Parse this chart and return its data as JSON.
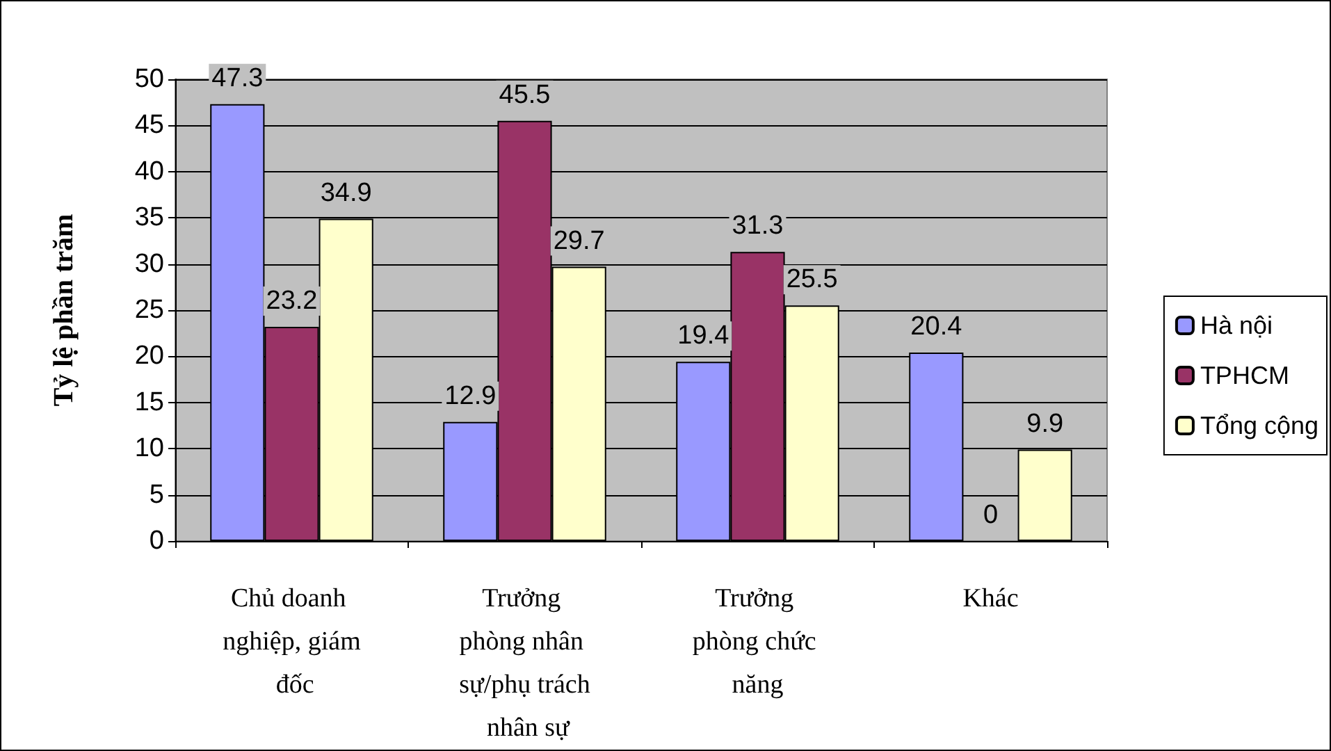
{
  "chart_data": {
    "type": "bar",
    "ylabel": "Tỷ lệ phần trăm",
    "categories": [
      "Chủ doanh nghiệp, giám đốc",
      "Trưởng phòng nhân sự/phụ trách nhân sự",
      "Trưởng phòng chức năng",
      "Khác"
    ],
    "series": [
      {
        "name": "Hà nội",
        "color": "#9999ff",
        "values": [
          47.3,
          12.9,
          19.4,
          20.4
        ]
      },
      {
        "name": "TPHCM",
        "color": "#993366",
        "values": [
          23.2,
          45.5,
          31.3,
          0
        ]
      },
      {
        "name": "Tổng cộng",
        "color": "#ffffcc",
        "values": [
          34.9,
          29.7,
          25.5,
          9.9
        ]
      }
    ],
    "ylim": [
      0,
      50
    ],
    "yticks": [
      0,
      5,
      10,
      15,
      20,
      25,
      30,
      35,
      40,
      45,
      50
    ],
    "grid": "y",
    "legend": "right",
    "data_labels": true
  }
}
